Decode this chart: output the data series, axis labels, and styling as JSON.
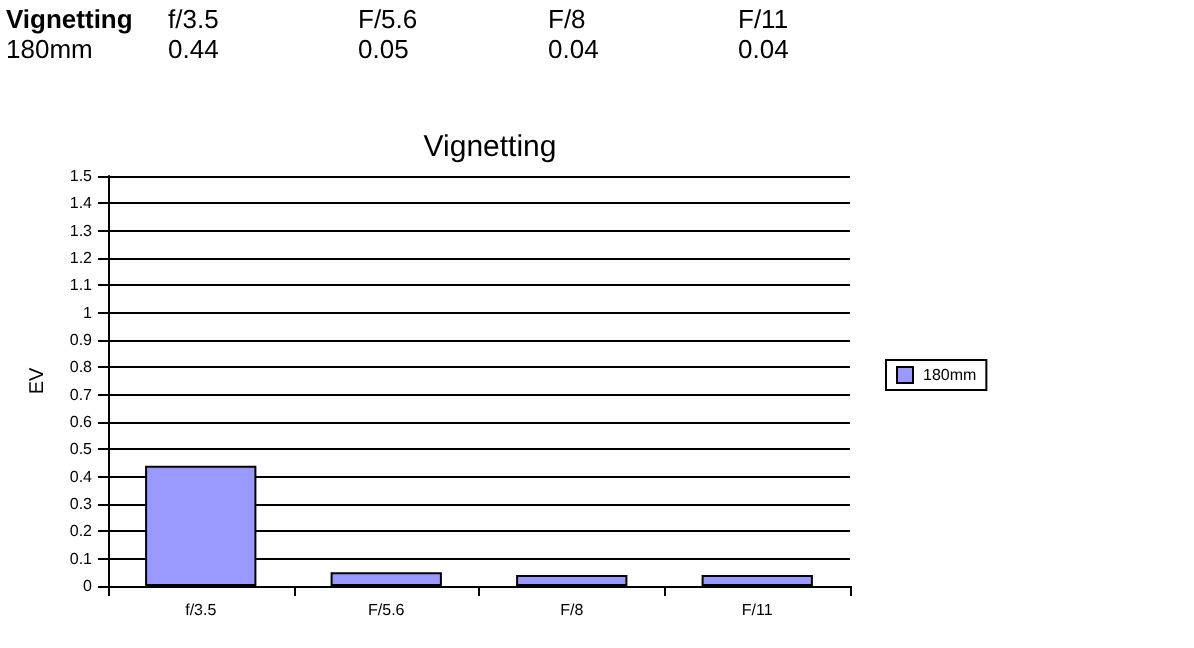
{
  "chart_data": {
    "type": "bar",
    "title": "Vignetting",
    "ylabel": "EV",
    "categories": [
      "f/3.5",
      "F/5.6",
      "F/8",
      "F/11"
    ],
    "series": [
      {
        "name": "180mm",
        "color": "#9999ff",
        "values": [
          0.44,
          0.05,
          0.04,
          0.04
        ]
      }
    ],
    "ylim": [
      0,
      1.5
    ],
    "yticks": [
      0,
      0.1,
      0.2,
      0.3,
      0.4,
      0.5,
      0.6,
      0.7,
      0.8,
      0.9,
      1,
      1.1,
      1.2,
      1.3,
      1.4,
      1.5
    ],
    "grid": "y",
    "legend": "right",
    "data_labels": true
  }
}
